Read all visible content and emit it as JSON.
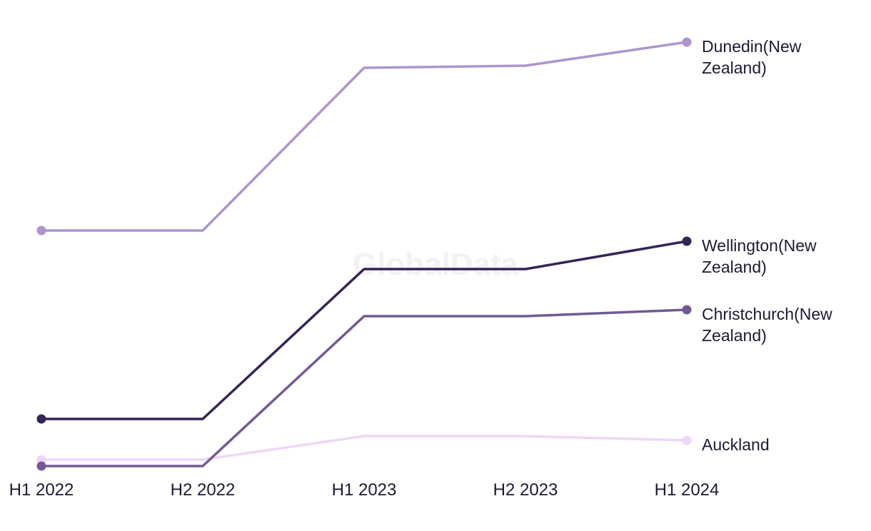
{
  "chart_data": {
    "type": "line",
    "title": "",
    "xlabel": "",
    "ylabel": "",
    "categories": [
      "H1 2022",
      "H2 2022",
      "H1 2023",
      "H2 2023",
      "H1 2024"
    ],
    "ylim": [
      0,
      100
    ],
    "grid": false,
    "legend": "direct-labels-right",
    "series": [
      {
        "name": "Dunedin(New Zealand)",
        "label_lines": [
          "Dunedin(New",
          "Zealand)"
        ],
        "color": "#ad94cf",
        "values": [
          55,
          55,
          93,
          93.5,
          99
        ]
      },
      {
        "name": "Wellington(New Zealand)",
        "label_lines": [
          "Wellington(New",
          "Zealand)"
        ],
        "color": "#352455",
        "values": [
          11,
          11,
          46,
          46,
          52.5
        ]
      },
      {
        "name": "Christchurch(New Zealand)",
        "label_lines": [
          "Christchurch(New",
          "Zealand)"
        ],
        "color": "#735a93",
        "values": [
          0,
          0,
          35,
          35,
          36.5
        ]
      },
      {
        "name": "Auckland",
        "label_lines": [
          "Auckland"
        ],
        "color": "#f0d6f6",
        "values": [
          1.5,
          1.5,
          7,
          7,
          6
        ]
      }
    ]
  },
  "watermark": "GlobalData"
}
